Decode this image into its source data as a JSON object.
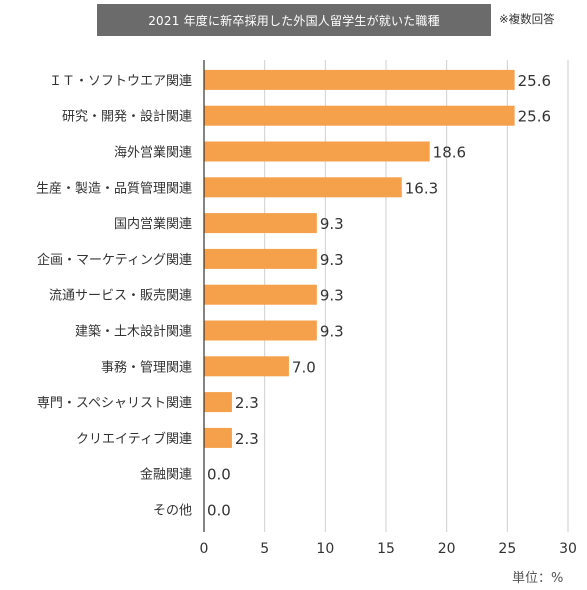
{
  "title": "2021 年度に新卒採用した外国人留学生が就いた職種",
  "note": "※複数回答",
  "unit_label": "単位：%",
  "colors": {
    "bar": "#f5a04a",
    "title_bg": "#6b6b6b",
    "axis": "#333333",
    "grid": "#cfcfcf"
  },
  "chart_data": {
    "type": "bar",
    "orientation": "horizontal",
    "title": "2021 年度に新卒採用した外国人留学生が就いた職種",
    "xlabel": "",
    "ylabel": "",
    "xlim": [
      0,
      30
    ],
    "xticks": [
      0,
      5,
      10,
      15,
      20,
      25,
      30
    ],
    "grid": true,
    "categories": [
      "ＩＴ・ソフトウエア関連",
      "研究・開発・設計関連",
      "海外営業関連",
      "生産・製造・品質管理関連",
      "国内営業関連",
      "企画・マーケティング関連",
      "流通サービス・販売関連",
      "建築・土木設計関連",
      "事務・管理関連",
      "専門・スペシャリスト関連",
      "クリエイティブ関連",
      "金融関連",
      "その他"
    ],
    "values": [
      25.6,
      25.6,
      18.6,
      16.3,
      9.3,
      9.3,
      9.3,
      9.3,
      7.0,
      2.3,
      2.3,
      0.0,
      0.0
    ],
    "data_labels": [
      "25.6",
      "25.6",
      "18.6",
      "16.3",
      "9.3",
      "9.3",
      "9.3",
      "9.3",
      "7.0",
      "2.3",
      "2.3",
      "0.0",
      "0.0"
    ]
  }
}
